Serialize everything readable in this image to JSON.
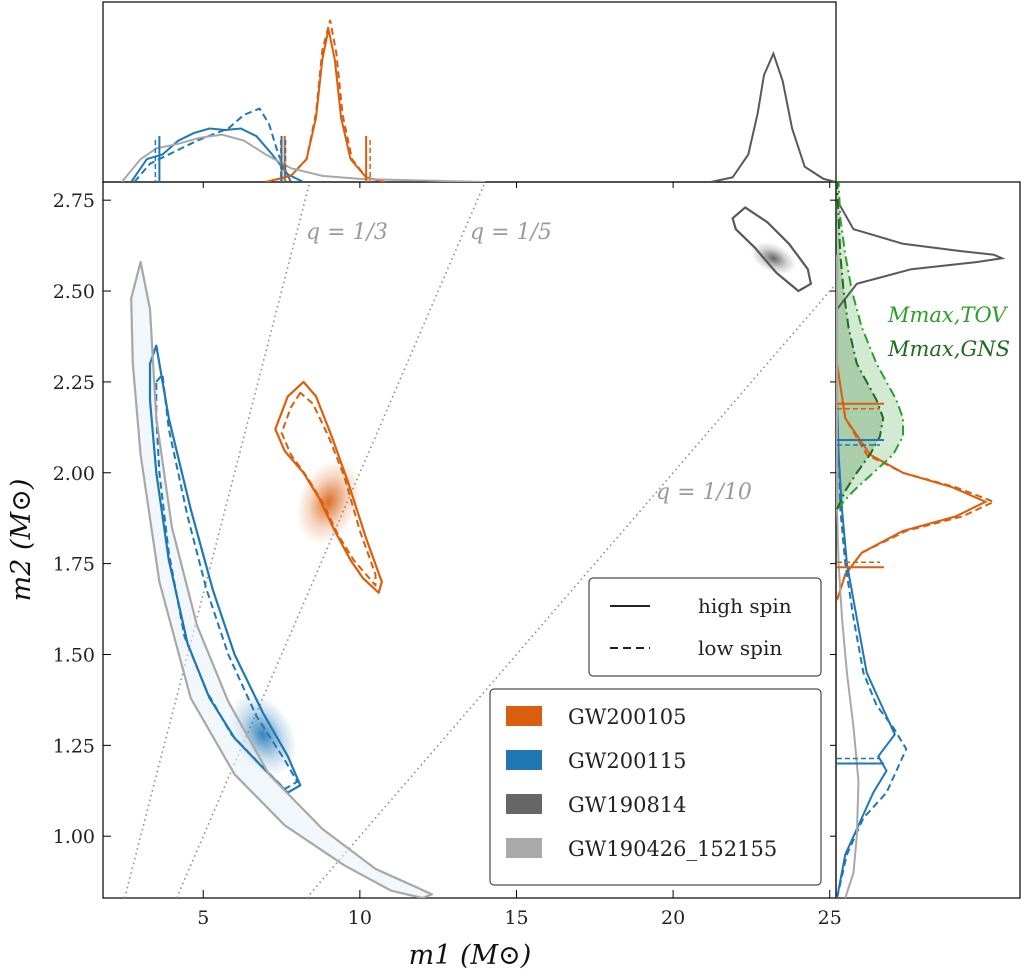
{
  "chart_data": {
    "type": "scatter",
    "subtype": "corner-plot with 2D posterior contours and marginal distributions",
    "xlabel": "m1 (M⊙)",
    "ylabel": "m2 (M⊙)",
    "xlim": [
      1.8,
      25.2
    ],
    "ylim": [
      0.83,
      2.8
    ],
    "xticks": [
      5,
      10,
      15,
      20,
      25
    ],
    "yticks": [
      1.0,
      1.25,
      1.5,
      1.75,
      2.0,
      2.25,
      2.5,
      2.75
    ],
    "colors": {
      "GW200105": "#d95f0e",
      "GW200115": "#1f77b4",
      "GW190814": "#595959",
      "GW190426_152155": "#a8a8a8",
      "q_lines": "#8c8c8c",
      "tov": "#2ca02c",
      "gns": "#1e6b1e"
    },
    "mass_ratio_lines": [
      {
        "label": "q = 1/3",
        "q": 0.3333
      },
      {
        "label": "q = 1/5",
        "q": 0.2
      },
      {
        "label": "q = 1/10",
        "q": 0.1
      }
    ],
    "legend_style": {
      "position": "lower-right",
      "entries": [
        {
          "label": "high spin",
          "style": "solid"
        },
        {
          "label": "low spin",
          "style": "dashed"
        }
      ]
    },
    "legend_events": {
      "position": "lower-right",
      "entries": [
        "GW200105",
        "GW200115",
        "GW190814",
        "GW190426_152155"
      ]
    },
    "series": [
      {
        "name": "GW200105",
        "contour": [
          [
            8.2,
            2.25
          ],
          [
            7.7,
            2.21
          ],
          [
            7.3,
            2.12
          ],
          [
            7.6,
            2.06
          ],
          [
            8.2,
            2.0
          ],
          [
            8.7,
            1.93
          ],
          [
            9.2,
            1.84
          ],
          [
            9.7,
            1.76
          ],
          [
            10.1,
            1.71
          ],
          [
            10.6,
            1.67
          ],
          [
            10.7,
            1.7
          ],
          [
            10.2,
            1.82
          ],
          [
            9.6,
            1.98
          ],
          [
            9.1,
            2.1
          ],
          [
            8.6,
            2.21
          ]
        ],
        "contour_low_spin": [
          [
            8.1,
            2.22
          ],
          [
            7.8,
            2.18
          ],
          [
            7.5,
            2.11
          ],
          [
            7.8,
            2.05
          ],
          [
            8.3,
            1.99
          ],
          [
            8.8,
            1.92
          ],
          [
            9.3,
            1.83
          ],
          [
            9.8,
            1.76
          ],
          [
            10.2,
            1.72
          ],
          [
            10.5,
            1.69
          ],
          [
            10.5,
            1.72
          ],
          [
            10.0,
            1.84
          ],
          [
            9.5,
            1.99
          ],
          [
            9.0,
            2.1
          ],
          [
            8.5,
            2.19
          ]
        ],
        "peak": [
          9.0,
          1.92
        ],
        "m1_ticks": [
          7.6,
          10.2
        ],
        "m2_ticks": [
          1.74,
          2.19
        ]
      },
      {
        "name": "GW200115",
        "contour": [
          [
            3.3,
            2.3
          ],
          [
            3.5,
            2.35
          ],
          [
            3.9,
            2.15
          ],
          [
            4.6,
            1.9
          ],
          [
            5.3,
            1.68
          ],
          [
            6.0,
            1.5
          ],
          [
            6.9,
            1.34
          ],
          [
            7.7,
            1.22
          ],
          [
            8.1,
            1.14
          ],
          [
            7.7,
            1.12
          ],
          [
            7.0,
            1.18
          ],
          [
            6.0,
            1.27
          ],
          [
            5.2,
            1.38
          ],
          [
            4.5,
            1.53
          ],
          [
            3.9,
            1.76
          ],
          [
            3.5,
            2.0
          ],
          [
            3.3,
            2.2
          ]
        ],
        "contour_low_spin": [
          [
            3.5,
            2.25
          ],
          [
            3.7,
            2.27
          ],
          [
            3.9,
            2.12
          ],
          [
            4.5,
            1.88
          ],
          [
            5.1,
            1.68
          ],
          [
            5.8,
            1.5
          ],
          [
            6.7,
            1.33
          ],
          [
            7.6,
            1.21
          ],
          [
            8.0,
            1.15
          ],
          [
            7.6,
            1.13
          ],
          [
            6.9,
            1.19
          ],
          [
            5.9,
            1.28
          ],
          [
            5.1,
            1.4
          ],
          [
            4.4,
            1.55
          ],
          [
            3.9,
            1.78
          ],
          [
            3.6,
            2.0
          ],
          [
            3.5,
            2.15
          ]
        ],
        "peak": [
          6.9,
          1.28
        ],
        "m1_ticks": [
          3.6,
          7.5
        ],
        "m2_ticks": [
          1.2,
          2.09
        ]
      },
      {
        "name": "GW190814",
        "contour": [
          [
            21.9,
            2.7
          ],
          [
            22.3,
            2.73
          ],
          [
            23.0,
            2.69
          ],
          [
            23.7,
            2.63
          ],
          [
            24.3,
            2.56
          ],
          [
            24.4,
            2.52
          ],
          [
            24.0,
            2.5
          ],
          [
            23.3,
            2.55
          ],
          [
            22.6,
            2.62
          ],
          [
            22.0,
            2.67
          ]
        ],
        "peak": [
          23.2,
          2.59
        ]
      },
      {
        "name": "GW190426_152155",
        "contour": [
          [
            2.7,
            2.48
          ],
          [
            3.0,
            2.58
          ],
          [
            3.3,
            2.45
          ],
          [
            3.5,
            2.15
          ],
          [
            4.0,
            1.85
          ],
          [
            4.8,
            1.58
          ],
          [
            5.8,
            1.37
          ],
          [
            7.1,
            1.17
          ],
          [
            8.8,
            1.02
          ],
          [
            10.5,
            0.91
          ],
          [
            11.8,
            0.86
          ],
          [
            12.3,
            0.84
          ],
          [
            12.0,
            0.83
          ],
          [
            11.0,
            0.85
          ],
          [
            9.5,
            0.92
          ],
          [
            7.6,
            1.03
          ],
          [
            6.0,
            1.17
          ],
          [
            4.6,
            1.38
          ],
          [
            3.6,
            1.7
          ],
          [
            3.0,
            2.05
          ],
          [
            2.75,
            2.3
          ]
        ]
      }
    ],
    "top_marginal": {
      "xlabel": "m1",
      "curves": [
        {
          "name": "GW200115",
          "style": "solid",
          "x": [
            2.7,
            3.2,
            3.7,
            4.2,
            4.7,
            5.2,
            5.7,
            6.2,
            6.7,
            7.2,
            7.7,
            8.2
          ],
          "y": [
            0.0,
            0.15,
            0.18,
            0.27,
            0.32,
            0.35,
            0.34,
            0.35,
            0.3,
            0.18,
            0.05,
            0.0
          ]
        },
        {
          "name": "GW200115",
          "style": "dashed",
          "x": [
            2.8,
            3.3,
            3.8,
            4.3,
            4.8,
            5.3,
            5.8,
            6.3,
            6.8,
            7.1,
            7.4,
            7.8
          ],
          "y": [
            0.0,
            0.12,
            0.17,
            0.22,
            0.27,
            0.31,
            0.35,
            0.44,
            0.48,
            0.38,
            0.18,
            0.0
          ]
        },
        {
          "name": "GW200105",
          "style": "solid",
          "x": [
            7.0,
            7.8,
            8.3,
            8.6,
            8.8,
            9.0,
            9.2,
            9.4,
            9.7,
            10.2,
            10.8
          ],
          "y": [
            0.0,
            0.04,
            0.15,
            0.42,
            0.8,
            1.0,
            0.8,
            0.42,
            0.15,
            0.03,
            0.0
          ]
        },
        {
          "name": "GW200105",
          "style": "dashed",
          "x": [
            7.0,
            7.8,
            8.3,
            8.6,
            8.8,
            9.05,
            9.25,
            9.45,
            9.75,
            10.2,
            10.8
          ],
          "y": [
            0.0,
            0.04,
            0.15,
            0.45,
            0.86,
            1.06,
            0.84,
            0.44,
            0.15,
            0.03,
            0.0
          ]
        },
        {
          "name": "GW190814",
          "style": "solid",
          "x": [
            21.2,
            21.9,
            22.4,
            22.7,
            22.9,
            23.2,
            23.5,
            23.8,
            24.2,
            24.8,
            25.2
          ],
          "y": [
            0.0,
            0.03,
            0.18,
            0.45,
            0.7,
            0.84,
            0.66,
            0.35,
            0.1,
            0.02,
            0.0
          ]
        },
        {
          "name": "GW190426_152155",
          "style": "solid",
          "x": [
            2.4,
            3.0,
            3.5,
            4.2,
            4.9,
            5.6,
            6.3,
            7.0,
            7.8,
            8.8,
            10.0,
            12.0,
            14.0
          ],
          "y": [
            0.0,
            0.15,
            0.22,
            0.25,
            0.29,
            0.31,
            0.27,
            0.18,
            0.09,
            0.04,
            0.02,
            0.01,
            0.0
          ]
        }
      ]
    },
    "right_marginal": {
      "ylabel": "m2",
      "curves": [
        {
          "name": "GW200105",
          "style": "solid",
          "y": [
            1.65,
            1.72,
            1.78,
            1.84,
            1.88,
            1.92,
            1.96,
            2.0,
            2.05,
            2.15,
            2.3
          ],
          "density": [
            0.0,
            0.05,
            0.15,
            0.4,
            0.72,
            0.9,
            0.7,
            0.4,
            0.2,
            0.05,
            0.0
          ]
        },
        {
          "name": "GW200105",
          "style": "dashed",
          "y": [
            1.65,
            1.72,
            1.78,
            1.84,
            1.88,
            1.92,
            1.96,
            2.0,
            2.05,
            2.15,
            2.3
          ],
          "density": [
            0.0,
            0.05,
            0.15,
            0.42,
            0.76,
            0.95,
            0.72,
            0.4,
            0.18,
            0.05,
            0.0
          ]
        },
        {
          "name": "GW200115",
          "style": "solid",
          "y": [
            0.83,
            0.95,
            1.05,
            1.12,
            1.18,
            1.22,
            1.28,
            1.35,
            1.45,
            1.6,
            1.75,
            1.9,
            2.05,
            2.2
          ],
          "density": [
            0.0,
            0.05,
            0.15,
            0.22,
            0.3,
            0.25,
            0.35,
            0.28,
            0.18,
            0.12,
            0.06,
            0.03,
            0.01,
            0.0
          ]
        },
        {
          "name": "GW200115",
          "style": "dashed",
          "y": [
            0.83,
            0.95,
            1.05,
            1.12,
            1.18,
            1.24,
            1.3,
            1.36,
            1.45,
            1.6,
            1.75,
            1.9,
            2.05,
            2.2
          ],
          "density": [
            0.0,
            0.06,
            0.16,
            0.3,
            0.36,
            0.42,
            0.34,
            0.24,
            0.16,
            0.1,
            0.05,
            0.02,
            0.01,
            0.0
          ]
        },
        {
          "name": "GW190814",
          "style": "solid",
          "y": [
            2.45,
            2.52,
            2.56,
            2.58,
            2.59,
            2.6,
            2.61,
            2.63,
            2.67,
            2.75
          ],
          "density": [
            0.0,
            0.12,
            0.45,
            0.85,
            1.0,
            0.95,
            0.75,
            0.4,
            0.1,
            0.0
          ]
        },
        {
          "name": "GW190426_152155",
          "style": "solid",
          "y": [
            0.83,
            0.9,
            1.0,
            1.15,
            1.3,
            1.45,
            1.6,
            1.75,
            1.9,
            2.05,
            2.2,
            2.4,
            2.6
          ],
          "density": [
            0.05,
            0.1,
            0.12,
            0.13,
            0.1,
            0.06,
            0.03,
            0.01,
            0.0,
            0.0,
            0.0,
            0.0,
            0.0
          ]
        },
        {
          "name": "M_max,TOV",
          "style": "dashdot",
          "y": [
            1.9,
            1.95,
            2.0,
            2.05,
            2.1,
            2.15,
            2.2,
            2.25,
            2.3,
            2.4,
            2.5,
            2.6,
            2.7,
            2.8
          ],
          "density": [
            0.0,
            0.1,
            0.22,
            0.34,
            0.4,
            0.4,
            0.36,
            0.3,
            0.24,
            0.15,
            0.09,
            0.05,
            0.02,
            0.01
          ]
        },
        {
          "name": "M_max,GNS",
          "style": "dashdot",
          "y": [
            1.9,
            1.95,
            2.0,
            2.05,
            2.1,
            2.15,
            2.2,
            2.25,
            2.3,
            2.4,
            2.5,
            2.6,
            2.7,
            2.8
          ],
          "density": [
            0.0,
            0.05,
            0.12,
            0.2,
            0.26,
            0.28,
            0.24,
            0.18,
            0.12,
            0.07,
            0.04,
            0.02,
            0.01,
            0.0
          ]
        }
      ],
      "annotations": [
        "Mmax,TOV",
        "Mmax,GNS"
      ]
    }
  }
}
